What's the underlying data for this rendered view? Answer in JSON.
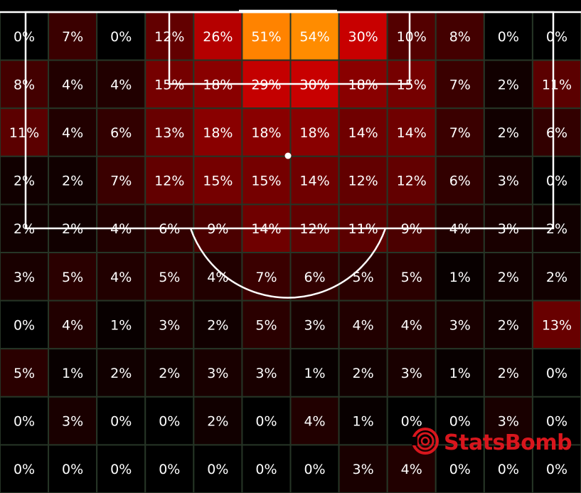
{
  "chart_data": {
    "type": "heatmap",
    "title": "",
    "xlabel": "",
    "ylabel": "",
    "value_unit": "%",
    "rows": 10,
    "cols": 12,
    "values": [
      [
        0,
        7,
        0,
        12,
        26,
        51,
        54,
        30,
        10,
        8,
        0,
        0
      ],
      [
        8,
        4,
        4,
        15,
        18,
        29,
        30,
        18,
        15,
        7,
        2,
        11
      ],
      [
        11,
        4,
        6,
        13,
        18,
        18,
        18,
        14,
        14,
        7,
        2,
        6
      ],
      [
        2,
        2,
        7,
        12,
        15,
        15,
        14,
        12,
        12,
        6,
        3,
        0
      ],
      [
        2,
        2,
        4,
        6,
        9,
        14,
        12,
        11,
        9,
        4,
        3,
        2
      ],
      [
        3,
        5,
        4,
        5,
        4,
        7,
        6,
        5,
        5,
        1,
        2,
        2
      ],
      [
        0,
        4,
        1,
        3,
        2,
        5,
        3,
        4,
        4,
        3,
        2,
        13
      ],
      [
        5,
        1,
        2,
        2,
        3,
        3,
        1,
        2,
        3,
        1,
        2,
        0
      ],
      [
        0,
        3,
        0,
        0,
        2,
        0,
        4,
        1,
        0,
        0,
        3,
        0
      ],
      [
        0,
        0,
        0,
        0,
        0,
        0,
        0,
        3,
        4,
        0,
        0,
        0
      ]
    ],
    "colorscale": [
      "#000000",
      "#5a0000",
      "#a00000",
      "#d40000",
      "#ff6a00",
      "#ff8c00"
    ],
    "background": "#000000",
    "grid_line_color": "#263526",
    "pitch_line_color": "#ffffff"
  },
  "branding": {
    "logo_text": "StatsBomb",
    "logo_color": "#d8161d"
  }
}
